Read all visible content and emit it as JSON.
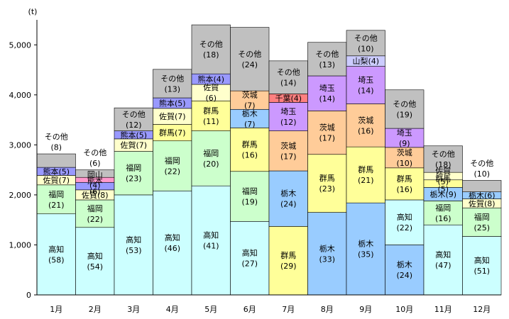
{
  "chart_data": {
    "type": "bar",
    "stacked": true,
    "unit_label": "(t)",
    "ylim": [
      0,
      5500
    ],
    "yticks": [
      "0",
      "1,000",
      "2,000",
      "3,000",
      "4,000",
      "5,000"
    ],
    "grid": false,
    "categories": [
      "1月",
      "2月",
      "3月",
      "4月",
      "5月",
      "6月",
      "7月",
      "8月",
      "9月",
      "10月",
      "11月",
      "12月"
    ],
    "colors": {
      "高知": "#ccffff",
      "福岡": "#ccffcc",
      "群馬": "#ffff99",
      "栃木": "#99ccff",
      "茨城": "#ffcc99",
      "埼玉": "#cc99ff",
      "佐賀": "#ffffcc",
      "熊本": "#9999ff",
      "千葉": "#ff8080",
      "山梨": "#ccccff",
      "岡山": "#ff99cc",
      "その他": "#c0c0c0"
    },
    "months": [
      {
        "segments": [
          {
            "name": "高知",
            "value": 1620,
            "label": "高知\n(58)"
          },
          {
            "name": "福岡",
            "value": 580,
            "label": "福岡\n(21)"
          },
          {
            "name": "佐賀",
            "value": 190,
            "label": "佐賀(7)"
          },
          {
            "name": "熊本",
            "value": 160,
            "label": "熊本(5)"
          },
          {
            "name": "その他",
            "value": 270,
            "label": "その他\n(8)"
          }
        ]
      },
      {
        "segments": [
          {
            "name": "高知",
            "value": 1350,
            "label": "高知\n(54)"
          },
          {
            "name": "福岡",
            "value": 550,
            "label": "福岡\n(22)"
          },
          {
            "name": "佐賀",
            "value": 200,
            "label": "佐賀(8)"
          },
          {
            "name": "熊本",
            "value": 150,
            "label": "熊本\n(6)"
          },
          {
            "name": "岡山",
            "value": 100,
            "label": "岡山\n(4)"
          },
          {
            "name": "その他",
            "value": 150,
            "label": "その他\n(6)"
          }
        ]
      },
      {
        "segments": [
          {
            "name": "高知",
            "value": 2000,
            "label": "高知\n(53)"
          },
          {
            "name": "福岡",
            "value": 870,
            "label": "福岡\n(23)"
          },
          {
            "name": "佐賀",
            "value": 250,
            "label": "佐賀(7)"
          },
          {
            "name": "熊本",
            "value": 160,
            "label": "熊本(5)"
          },
          {
            "name": "その他",
            "value": 460,
            "label": "その他\n(12)"
          }
        ]
      },
      {
        "segments": [
          {
            "name": "高知",
            "value": 2080,
            "label": "高知\n(46)"
          },
          {
            "name": "福岡",
            "value": 1000,
            "label": "福岡\n(22)"
          },
          {
            "name": "群馬",
            "value": 330,
            "label": "群馬(7)"
          },
          {
            "name": "佐賀",
            "value": 320,
            "label": "佐賀(7)"
          },
          {
            "name": "熊本",
            "value": 210,
            "label": "熊本(5)"
          },
          {
            "name": "その他",
            "value": 570,
            "label": "その他\n(13)"
          }
        ]
      },
      {
        "segments": [
          {
            "name": "高知",
            "value": 2180,
            "label": "高知\n(41)"
          },
          {
            "name": "福岡",
            "value": 1100,
            "label": "福岡\n(20)"
          },
          {
            "name": "群馬",
            "value": 600,
            "label": "群馬\n(11)"
          },
          {
            "name": "佐賀",
            "value": 330,
            "label": "佐賀\n(6)"
          },
          {
            "name": "熊本",
            "value": 210,
            "label": "熊本(4)"
          },
          {
            "name": "その他",
            "value": 980,
            "label": "その他\n(18)"
          }
        ]
      },
      {
        "segments": [
          {
            "name": "高知",
            "value": 1470,
            "label": "高知\n(27)"
          },
          {
            "name": "福岡",
            "value": 1000,
            "label": "福岡\n(19)"
          },
          {
            "name": "群馬",
            "value": 870,
            "label": "群馬\n(16)"
          },
          {
            "name": "栃木",
            "value": 370,
            "label": "栃木\n(7)"
          },
          {
            "name": "茨城",
            "value": 370,
            "label": "茨城\n(7)"
          },
          {
            "name": "その他",
            "value": 1270,
            "label": "その他\n(24)"
          }
        ]
      },
      {
        "segments": [
          {
            "name": "群馬",
            "value": 1370,
            "label": "群馬\n(29)"
          },
          {
            "name": "栃木",
            "value": 1110,
            "label": "栃木\n(24)"
          },
          {
            "name": "茨城",
            "value": 800,
            "label": "茨城\n(17)"
          },
          {
            "name": "埼玉",
            "value": 570,
            "label": "埼玉\n(12)"
          },
          {
            "name": "千葉",
            "value": 170,
            "label": "千葉(4)"
          },
          {
            "name": "その他",
            "value": 660,
            "label": "その他\n(14)"
          }
        ]
      },
      {
        "segments": [
          {
            "name": "栃木",
            "value": 1650,
            "label": "栃木\n(33)"
          },
          {
            "name": "群馬",
            "value": 1160,
            "label": "群馬\n(23)"
          },
          {
            "name": "茨城",
            "value": 870,
            "label": "茨城\n(17)"
          },
          {
            "name": "埼玉",
            "value": 700,
            "label": "埼玉\n(14)"
          },
          {
            "name": "その他",
            "value": 670,
            "label": "その他\n(13)"
          }
        ]
      },
      {
        "segments": [
          {
            "name": "栃木",
            "value": 1840,
            "label": "栃木\n(35)"
          },
          {
            "name": "群馬",
            "value": 1120,
            "label": "群馬\n(21)"
          },
          {
            "name": "茨城",
            "value": 860,
            "label": "茨城\n(16)"
          },
          {
            "name": "埼玉",
            "value": 750,
            "label": "埼玉\n(14)"
          },
          {
            "name": "山梨",
            "value": 210,
            "label": "山梨(4)"
          },
          {
            "name": "その他",
            "value": 510,
            "label": "その他\n(10)"
          }
        ]
      },
      {
        "segments": [
          {
            "name": "栃木",
            "value": 1000,
            "label": "栃木\n(24)"
          },
          {
            "name": "高知",
            "value": 900,
            "label": "高知\n(22)"
          },
          {
            "name": "群馬",
            "value": 640,
            "label": "群馬\n(16)"
          },
          {
            "name": "茨城",
            "value": 410,
            "label": "茨城\n(10)"
          },
          {
            "name": "埼玉",
            "value": 380,
            "label": "埼玉\n(9)"
          },
          {
            "name": "その他",
            "value": 770,
            "label": "その他\n(19)"
          }
        ]
      },
      {
        "segments": [
          {
            "name": "高知",
            "value": 1400,
            "label": "高知\n(47)"
          },
          {
            "name": "福岡",
            "value": 480,
            "label": "福岡\n(16)"
          },
          {
            "name": "栃木",
            "value": 270,
            "label": "栃木(9)"
          },
          {
            "name": "群馬",
            "value": 150,
            "label": "群馬\n(5)"
          },
          {
            "name": "佐賀",
            "value": 150,
            "label": "佐賀\n(5)"
          },
          {
            "name": "その他",
            "value": 530,
            "label": "その他\n(18)"
          }
        ]
      },
      {
        "segments": [
          {
            "name": "高知",
            "value": 1170,
            "label": "高知\n(51)"
          },
          {
            "name": "福岡",
            "value": 570,
            "label": "福岡\n(25)"
          },
          {
            "name": "佐賀",
            "value": 180,
            "label": "佐賀(8)"
          },
          {
            "name": "栃木",
            "value": 140,
            "label": "栃木(6)"
          },
          {
            "name": "熊本",
            "value": 0,
            "label": ""
          },
          {
            "name": "その他",
            "value": 230,
            "label": "その他\n(10)"
          }
        ]
      }
    ]
  }
}
